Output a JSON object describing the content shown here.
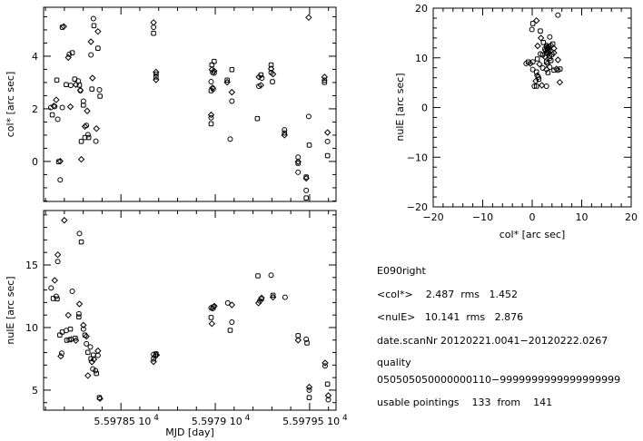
{
  "colors": {
    "ink": "#000000",
    "background": "#ffffff"
  },
  "chart_data": [
    {
      "type": "scatter",
      "ylabel": "col* [arc sec]",
      "xlim": [
        55978.09,
        55979.64
      ],
      "ylim": [
        -1.52,
        5.86
      ],
      "yticks": [
        {
          "value": 0,
          "label": "0"
        },
        {
          "value": 2,
          "label": "2"
        },
        {
          "value": 4,
          "label": "4"
        }
      ],
      "y_minor_step": 0.5,
      "x_major": [
        55978.5,
        55979.0,
        55979.5
      ],
      "x_minor_step": 0.1,
      "grid": false,
      "points": [
        [
          55978.128,
          2.05
        ],
        [
          55978.136,
          1.77
        ],
        [
          55978.144,
          2.11
        ],
        [
          55978.149,
          2.09
        ],
        [
          55978.16,
          3.09
        ],
        [
          55978.157,
          2.34
        ],
        [
          55978.165,
          1.6
        ],
        [
          55978.17,
          -0.01
        ],
        [
          55978.178,
          0.01
        ],
        [
          55978.178,
          -0.7
        ],
        [
          55978.189,
          5.1
        ],
        [
          55978.197,
          5.13
        ],
        [
          55978.189,
          2.05
        ],
        [
          55978.21,
          2.92
        ],
        [
          55978.221,
          3.95
        ],
        [
          55978.226,
          4.07
        ],
        [
          55978.242,
          4.13
        ],
        [
          55978.232,
          2.08
        ],
        [
          55978.234,
          2.89
        ],
        [
          55978.255,
          3.13
        ],
        [
          55978.261,
          2.92
        ],
        [
          55978.274,
          3.06
        ],
        [
          55978.28,
          2.9
        ],
        [
          55978.285,
          2.71
        ],
        [
          55978.285,
          2.69
        ],
        [
          55978.29,
          0.76
        ],
        [
          55978.29,
          0.08
        ],
        [
          55978.301,
          2.29
        ],
        [
          55978.301,
          2.14
        ],
        [
          55978.309,
          1.33
        ],
        [
          55978.317,
          1.37
        ],
        [
          55978.309,
          0.91
        ],
        [
          55978.321,
          1.92
        ],
        [
          55978.325,
          1.02
        ],
        [
          55978.329,
          0.91
        ],
        [
          55978.341,
          4.55
        ],
        [
          55978.341,
          4.05
        ],
        [
          55978.346,
          2.75
        ],
        [
          55978.349,
          3.17
        ],
        [
          55978.354,
          5.43
        ],
        [
          55978.357,
          5.16
        ],
        [
          55978.37,
          1.25
        ],
        [
          55978.367,
          0.77
        ],
        [
          55978.378,
          4.3
        ],
        [
          55978.378,
          4.94
        ],
        [
          55978.386,
          2.72
        ],
        [
          55978.389,
          2.48
        ],
        [
          55978.673,
          5.28
        ],
        [
          55978.673,
          5.1
        ],
        [
          55978.673,
          4.87
        ],
        [
          55978.686,
          3.4
        ],
        [
          55978.686,
          3.32
        ],
        [
          55978.686,
          3.21
        ],
        [
          55978.686,
          3.1
        ],
        [
          55978.978,
          3.03
        ],
        [
          55978.978,
          2.69
        ],
        [
          55978.978,
          1.77
        ],
        [
          55978.978,
          1.66
        ],
        [
          55978.978,
          1.43
        ],
        [
          55978.986,
          2.8
        ],
        [
          55978.989,
          2.75
        ],
        [
          55978.982,
          3.67
        ],
        [
          55978.982,
          3.49
        ],
        [
          55978.986,
          3.38
        ],
        [
          55978.994,
          3.8
        ],
        [
          55978.994,
          3.44
        ],
        [
          55978.994,
          3.36
        ],
        [
          55979.063,
          3.09
        ],
        [
          55979.063,
          3.01
        ],
        [
          55979.079,
          0.85
        ],
        [
          55979.088,
          3.49
        ],
        [
          55979.088,
          2.63
        ],
        [
          55979.088,
          2.29
        ],
        [
          55979.223,
          1.63
        ],
        [
          55979.231,
          3.21
        ],
        [
          55979.231,
          2.86
        ],
        [
          55979.242,
          3.29
        ],
        [
          55979.242,
          2.9
        ],
        [
          55979.247,
          3.17
        ],
        [
          55979.296,
          3.67
        ],
        [
          55979.296,
          3.52
        ],
        [
          55979.296,
          3.38
        ],
        [
          55979.303,
          3.03
        ],
        [
          55979.306,
          3.32
        ],
        [
          55979.367,
          1.2
        ],
        [
          55979.367,
          1.08
        ],
        [
          55979.367,
          1.0
        ],
        [
          55979.439,
          0.16
        ],
        [
          55979.439,
          -0.07
        ],
        [
          55979.439,
          -0.01
        ],
        [
          55979.439,
          -0.41
        ],
        [
          55979.482,
          -0.59
        ],
        [
          55979.482,
          -0.64
        ],
        [
          55979.482,
          -1.1
        ],
        [
          55979.482,
          -1.39
        ],
        [
          55979.495,
          5.47
        ],
        [
          55979.495,
          1.71
        ],
        [
          55979.498,
          0.62
        ],
        [
          55979.579,
          3.21
        ],
        [
          55979.579,
          3.09
        ],
        [
          55979.579,
          3.01
        ],
        [
          55979.595,
          1.1
        ],
        [
          55979.595,
          0.76
        ],
        [
          55979.595,
          0.22
        ]
      ]
    },
    {
      "type": "scatter",
      "ylabel": "nulE [arc sec]",
      "xlabel": "MJD [day]",
      "xlim": [
        55978.09,
        55979.64
      ],
      "ylim": [
        3.4,
        19.35
      ],
      "yticks": [
        {
          "value": 5,
          "label": "5"
        },
        {
          "value": 10,
          "label": "10"
        },
        {
          "value": 15,
          "label": "15"
        }
      ],
      "y_minor_step": 1,
      "x_major": [
        55978.5,
        55979.0,
        55979.5
      ],
      "x_minor_step": 0.1,
      "xtick_labels": [
        {
          "value": 55978.5,
          "mantissa": "5.59785 10",
          "exp": "4"
        },
        {
          "value": 55979.0,
          "mantissa": "5.5979 10",
          "exp": "4"
        },
        {
          "value": 55979.5,
          "mantissa": "5.59795 10",
          "exp": "4"
        }
      ],
      "grid": false,
      "points": [
        [
          55978.13,
          13.16
        ],
        [
          55978.141,
          12.32
        ],
        [
          55978.149,
          13.77
        ],
        [
          55978.157,
          12.49
        ],
        [
          55978.162,
          12.29
        ],
        [
          55978.165,
          15.82
        ],
        [
          55978.165,
          15.27
        ],
        [
          55978.176,
          9.4
        ],
        [
          55978.181,
          7.71
        ],
        [
          55978.186,
          7.95
        ],
        [
          55978.189,
          9.64
        ],
        [
          55978.2,
          18.57
        ],
        [
          55978.21,
          9.76
        ],
        [
          55978.213,
          8.99
        ],
        [
          55978.221,
          10.99
        ],
        [
          55978.226,
          9.03
        ],
        [
          55978.232,
          9.88
        ],
        [
          55978.237,
          9.06
        ],
        [
          55978.242,
          12.9
        ],
        [
          55978.258,
          9.15
        ],
        [
          55978.261,
          8.96
        ],
        [
          55978.28,
          17.51
        ],
        [
          55978.29,
          16.84
        ],
        [
          55978.28,
          11.88
        ],
        [
          55978.277,
          11.09
        ],
        [
          55978.277,
          10.85
        ],
        [
          55978.301,
          10.19
        ],
        [
          55978.301,
          9.88
        ],
        [
          55978.309,
          9.4
        ],
        [
          55978.317,
          9.3
        ],
        [
          55978.317,
          8.7
        ],
        [
          55978.325,
          8.02
        ],
        [
          55978.325,
          6.16
        ],
        [
          55978.338,
          8.45
        ],
        [
          55978.341,
          7.51
        ],
        [
          55978.346,
          7.25
        ],
        [
          55978.351,
          6.69
        ],
        [
          55978.354,
          7.8
        ],
        [
          55978.357,
          7.46
        ],
        [
          55978.365,
          6.55
        ],
        [
          55978.37,
          6.33
        ],
        [
          55978.378,
          8.14
        ],
        [
          55978.378,
          7.78
        ],
        [
          55978.386,
          4.4
        ],
        [
          55978.389,
          4.32
        ],
        [
          55978.673,
          7.85
        ],
        [
          55978.673,
          7.49
        ],
        [
          55978.673,
          7.27
        ],
        [
          55978.683,
          7.73
        ],
        [
          55978.686,
          7.9
        ],
        [
          55978.689,
          7.8
        ],
        [
          55978.978,
          11.57
        ],
        [
          55978.978,
          10.8
        ],
        [
          55978.982,
          10.31
        ],
        [
          55978.986,
          11.52
        ],
        [
          55978.99,
          11.64
        ],
        [
          55978.995,
          11.71
        ],
        [
          55979.066,
          11.96
        ],
        [
          55979.079,
          9.78
        ],
        [
          55979.088,
          11.81
        ],
        [
          55979.088,
          10.43
        ],
        [
          55979.226,
          14.13
        ],
        [
          55979.229,
          11.96
        ],
        [
          55979.236,
          12.13
        ],
        [
          55979.245,
          12.29
        ],
        [
          55979.245,
          12.37
        ],
        [
          55979.296,
          14.18
        ],
        [
          55979.306,
          12.58
        ],
        [
          55979.306,
          12.42
        ],
        [
          55979.37,
          12.42
        ],
        [
          55979.439,
          9.35
        ],
        [
          55979.439,
          8.99
        ],
        [
          55979.482,
          9.06
        ],
        [
          55979.486,
          8.77
        ],
        [
          55979.498,
          5.24
        ],
        [
          55979.498,
          5.0
        ],
        [
          55979.498,
          4.4
        ],
        [
          55979.582,
          7.17
        ],
        [
          55979.582,
          6.93
        ],
        [
          55979.595,
          5.48
        ],
        [
          55979.599,
          4.57
        ],
        [
          55979.599,
          4.23
        ]
      ]
    },
    {
      "type": "scatter",
      "xlabel": "col* [arc sec]",
      "ylabel": "nulE [arc sec]",
      "xlim": [
        -20,
        20
      ],
      "ylim": [
        -20,
        20
      ],
      "xticks": [
        {
          "value": -20,
          "label": "−20"
        },
        {
          "value": -10,
          "label": "−10"
        },
        {
          "value": 0,
          "label": "0"
        },
        {
          "value": 10,
          "label": "10"
        },
        {
          "value": 20,
          "label": "20"
        }
      ],
      "yticks": [
        {
          "value": -20,
          "label": "−20"
        },
        {
          "value": -10,
          "label": "−10"
        },
        {
          "value": 0,
          "label": "0"
        },
        {
          "value": 10,
          "label": "10"
        },
        {
          "value": 20,
          "label": "20"
        }
      ],
      "minor_step": 2,
      "grid": false,
      "points": [
        [
          5.2,
          18.6
        ],
        [
          0.12,
          16.9
        ],
        [
          0.86,
          17.5
        ],
        [
          -0.06,
          15.7
        ],
        [
          1.65,
          15.4
        ],
        [
          1.77,
          14.0
        ],
        [
          3.55,
          14.2
        ],
        [
          2.26,
          13.1
        ],
        [
          1.1,
          12.4
        ],
        [
          2.88,
          12.5
        ],
        [
          3.06,
          11.9
        ],
        [
          3.37,
          11.6
        ],
        [
          3.79,
          12.5
        ],
        [
          4.16,
          12.8
        ],
        [
          4.4,
          11.9
        ],
        [
          1.65,
          10.8
        ],
        [
          2.08,
          10.6
        ],
        [
          2.57,
          10.2
        ],
        [
          3.49,
          10.4
        ],
        [
          3.98,
          10.7
        ],
        [
          4.4,
          11.0
        ],
        [
          -1.22,
          8.86
        ],
        [
          -0.8,
          9.17
        ],
        [
          -0.37,
          8.86
        ],
        [
          0.12,
          9.17
        ],
        [
          1.04,
          9.77
        ],
        [
          1.47,
          8.73
        ],
        [
          2.14,
          7.95
        ],
        [
          2.88,
          9.17
        ],
        [
          3.06,
          8.86
        ],
        [
          3.55,
          9.9
        ],
        [
          3.79,
          9.46
        ],
        [
          5.2,
          9.59
        ],
        [
          0.12,
          7.64
        ],
        [
          0.86,
          7.16
        ],
        [
          1.04,
          6.43
        ],
        [
          1.22,
          6.12
        ],
        [
          1.35,
          5.7
        ],
        [
          0.73,
          5.33
        ],
        [
          0.43,
          4.29
        ],
        [
          0.86,
          4.29
        ],
        [
          1.96,
          4.47
        ],
        [
          2.88,
          4.29
        ],
        [
          3.18,
          7.03
        ],
        [
          2.88,
          7.64
        ],
        [
          3.55,
          8.13
        ],
        [
          4.4,
          7.52
        ],
        [
          4.89,
          7.76
        ],
        [
          5.2,
          7.52
        ],
        [
          5.63,
          7.76
        ],
        [
          5.57,
          5.08
        ],
        [
          2.57,
          11.8
        ],
        [
          3.06,
          11.3
        ],
        [
          3.37,
          11.0
        ],
        [
          2.9,
          12.2
        ],
        [
          3.2,
          12.0
        ],
        [
          2.7,
          11.5
        ],
        [
          3.0,
          10.9
        ],
        [
          3.4,
          12.3
        ],
        [
          2.8,
          11.0
        ]
      ]
    }
  ],
  "info": {
    "title": "E090right",
    "col_line": "<col*>    2.487  rms   1.452",
    "nul_line": "<nulE>   10.141  rms   2.876",
    "date_line": "date.scanNr 20120221.0041−20120222.0267",
    "quality_label": "quality",
    "quality_value": "050505050000000110−9999999999999999999",
    "usable_line": "usable pointings    133  from    141"
  }
}
